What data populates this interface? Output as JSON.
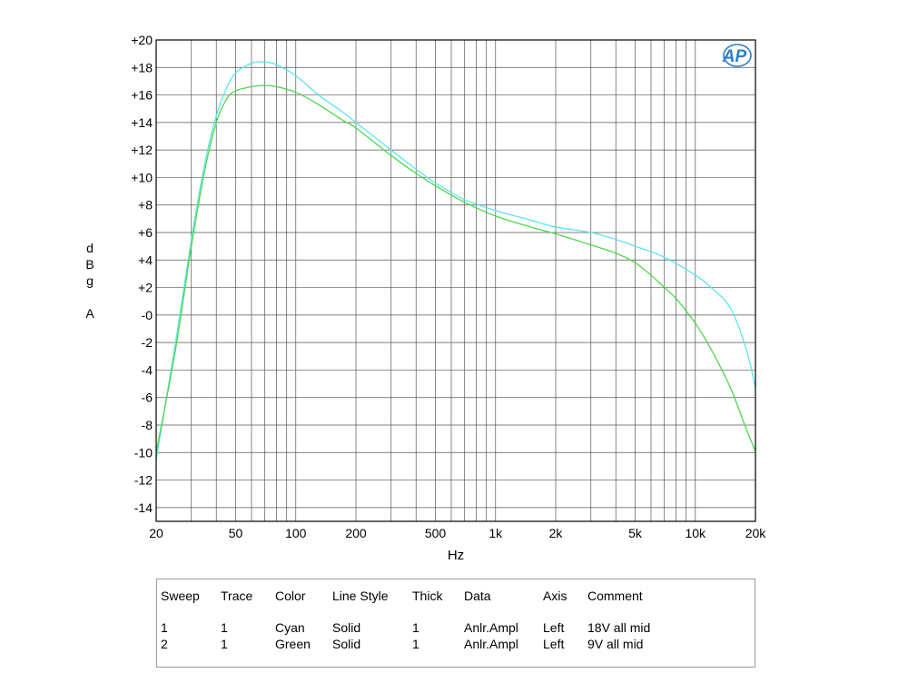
{
  "chart_data": {
    "type": "line",
    "xscale": "log",
    "xlim": [
      20,
      20000
    ],
    "ylim": [
      -15,
      20
    ],
    "xlabel": "Hz",
    "ylabel_lines": [
      "d",
      "B",
      "g",
      "",
      "A"
    ],
    "x_ticks": [
      {
        "value": 20,
        "label": "20"
      },
      {
        "value": 50,
        "label": "50"
      },
      {
        "value": 100,
        "label": "100"
      },
      {
        "value": 200,
        "label": "200"
      },
      {
        "value": 500,
        "label": "500"
      },
      {
        "value": 1000,
        "label": "1k"
      },
      {
        "value": 2000,
        "label": "2k"
      },
      {
        "value": 5000,
        "label": "5k"
      },
      {
        "value": 10000,
        "label": "10k"
      },
      {
        "value": 20000,
        "label": "20k"
      }
    ],
    "y_ticks": [
      {
        "value": 20,
        "label": "+20"
      },
      {
        "value": 18,
        "label": "+18"
      },
      {
        "value": 16,
        "label": "+16"
      },
      {
        "value": 14,
        "label": "+14"
      },
      {
        "value": 12,
        "label": "+12"
      },
      {
        "value": 10,
        "label": "+10"
      },
      {
        "value": 8,
        "label": "+8"
      },
      {
        "value": 6,
        "label": "+6"
      },
      {
        "value": 4,
        "label": "+4"
      },
      {
        "value": 2,
        "label": "+2"
      },
      {
        "value": 0,
        "label": "-0"
      },
      {
        "value": -2,
        "label": "-2"
      },
      {
        "value": -4,
        "label": "-4"
      },
      {
        "value": -6,
        "label": "-6"
      },
      {
        "value": -8,
        "label": "-8"
      },
      {
        "value": -10,
        "label": "-10"
      },
      {
        "value": -12,
        "label": "-12"
      },
      {
        "value": -14,
        "label": "-14"
      }
    ],
    "logo_text": "AP",
    "series": [
      {
        "name": "18V all mid",
        "color": "#5ee3ec",
        "points": [
          [
            20,
            -10.5
          ],
          [
            25,
            -2
          ],
          [
            30,
            5.5
          ],
          [
            35,
            11
          ],
          [
            40,
            14.5
          ],
          [
            45,
            16.5
          ],
          [
            50,
            17.6
          ],
          [
            60,
            18.3
          ],
          [
            70,
            18.4
          ],
          [
            80,
            18.2
          ],
          [
            100,
            17.4
          ],
          [
            130,
            16
          ],
          [
            170,
            14.8
          ],
          [
            200,
            14
          ],
          [
            300,
            12
          ],
          [
            400,
            10.6
          ],
          [
            500,
            9.6
          ],
          [
            700,
            8.4
          ],
          [
            1000,
            7.6
          ],
          [
            1500,
            6.9
          ],
          [
            2000,
            6.4
          ],
          [
            3000,
            6
          ],
          [
            4000,
            5.5
          ],
          [
            5000,
            5
          ],
          [
            7000,
            4.2
          ],
          [
            10000,
            2.9
          ],
          [
            12000,
            2
          ],
          [
            15000,
            0.5
          ],
          [
            18000,
            -2.5
          ],
          [
            20000,
            -5.3
          ]
        ]
      },
      {
        "name": "9V all mid",
        "color": "#4fd64f",
        "points": [
          [
            20,
            -10
          ],
          [
            25,
            -2.5
          ],
          [
            30,
            5
          ],
          [
            35,
            10.5
          ],
          [
            40,
            14
          ],
          [
            45,
            15.7
          ],
          [
            50,
            16.3
          ],
          [
            60,
            16.6
          ],
          [
            70,
            16.7
          ],
          [
            80,
            16.6
          ],
          [
            100,
            16.2
          ],
          [
            130,
            15.3
          ],
          [
            170,
            14.2
          ],
          [
            200,
            13.6
          ],
          [
            300,
            11.6
          ],
          [
            400,
            10.3
          ],
          [
            500,
            9.4
          ],
          [
            700,
            8.2
          ],
          [
            1000,
            7.2
          ],
          [
            1500,
            6.4
          ],
          [
            2000,
            5.9
          ],
          [
            3000,
            5.1
          ],
          [
            4000,
            4.5
          ],
          [
            5000,
            3.8
          ],
          [
            6000,
            2.9
          ],
          [
            7000,
            2
          ],
          [
            8000,
            1.2
          ],
          [
            10000,
            -0.6
          ],
          [
            12000,
            -2.5
          ],
          [
            15000,
            -5.3
          ],
          [
            18000,
            -8.3
          ],
          [
            20000,
            -9.9
          ]
        ]
      }
    ]
  },
  "legend": {
    "headers": [
      "Sweep",
      "Trace",
      "Color",
      "Line Style",
      "Thick",
      "Data",
      "Axis",
      "Comment"
    ],
    "rows": [
      [
        "1",
        "1",
        "Cyan",
        "Solid",
        "1",
        "Anlr.Ampl",
        "Left",
        "18V all mid"
      ],
      [
        "2",
        "1",
        "Green",
        "Solid",
        "1",
        "Anlr.Ampl",
        "Left",
        "9V all mid"
      ]
    ]
  }
}
